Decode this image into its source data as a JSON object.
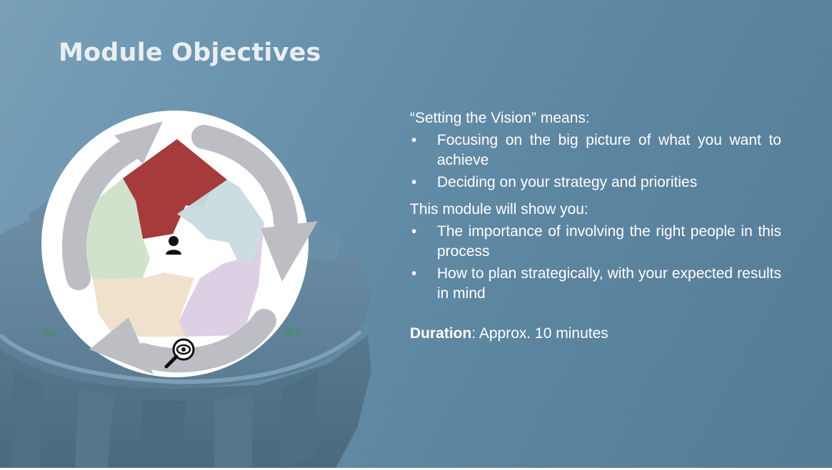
{
  "slide": {
    "title": "Module Objectives"
  },
  "content": {
    "intro_1": "“Setting the Vision” means:",
    "bullets_1": [
      "Focusing on the big picture of what you want to achieve",
      "Deciding on your strategy and priorities"
    ],
    "intro_2": "This module will show you:",
    "bullets_2": [
      "The importance of involving the right people in this process",
      "How to plan strategically, with your expected results in mind"
    ],
    "bullet_char": "•",
    "duration_label": "Duration",
    "duration_value": ": Approx. 10 minutes"
  },
  "diagram": {
    "segment_colors": {
      "top": "#a63b3b",
      "right": "#c9dbe0",
      "lower_right": "#dccde3",
      "lower_left": "#eedfc8",
      "left": "#cfe0c9"
    },
    "arrow_color": "#bcbec3",
    "center_icon": "person-icon",
    "bottom_icon": "magnifier-eye-icon"
  },
  "colors": {
    "background": "#6a93ae",
    "title": "#e9eef2",
    "body_text": "#ffffff"
  }
}
